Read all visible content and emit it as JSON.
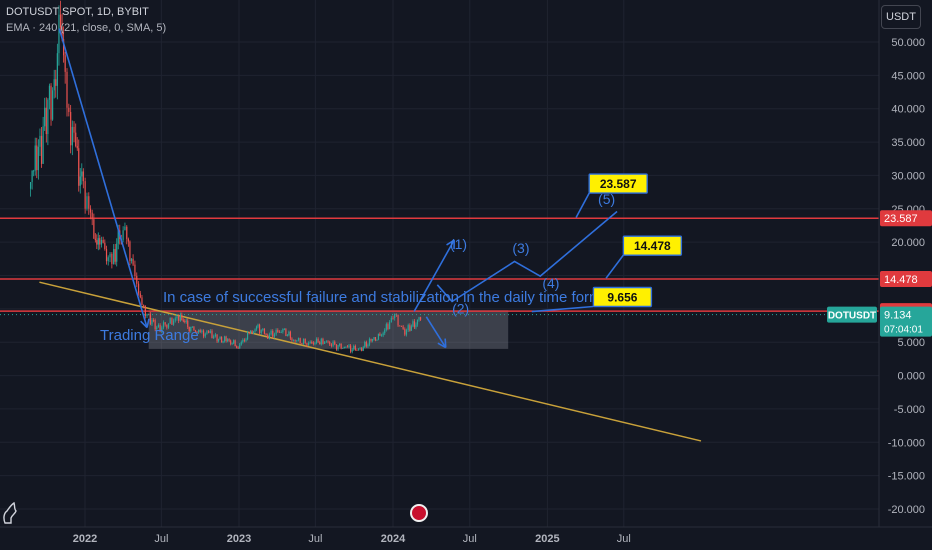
{
  "header": {
    "symbol_line": "DOTUSDT SPOT, 1D, BYBIT",
    "indicator_line": "EMA · 240 (21, close, 0, SMA, 5)"
  },
  "currency_button": "USDT",
  "chart_data": {
    "type": "line",
    "symbol": "DOTUSDT",
    "y_axis": {
      "ticks": [
        "-20.000",
        "-15.000",
        "-10.000",
        "-5.000",
        "0.000",
        "5.000",
        "10.000",
        "15.000",
        "20.000",
        "25.000",
        "30.000",
        "35.000",
        "40.000",
        "45.000",
        "50.000"
      ],
      "range": [
        -22,
        54
      ]
    },
    "x_axis": {
      "ticks": [
        "2022",
        "Jul",
        "2023",
        "Jul",
        "2024",
        "Jul",
        "2025",
        "Jul"
      ]
    },
    "price_series": {
      "name": "",
      "points": [
        [
          "2021-08-25",
          28
        ],
        [
          "2021-09-05",
          33
        ],
        [
          "2021-09-20",
          35
        ],
        [
          "2021-10-05",
          40
        ],
        [
          "2021-10-20",
          44
        ],
        [
          "2021-11-04",
          52
        ],
        [
          "2021-11-15",
          44
        ],
        [
          "2021-11-28",
          38
        ],
        [
          "2021-12-10",
          33
        ],
        [
          "2021-12-28",
          28
        ],
        [
          "2022-01-10",
          26
        ],
        [
          "2022-01-22",
          20
        ],
        [
          "2022-02-05",
          21
        ],
        [
          "2022-02-25",
          17
        ],
        [
          "2022-03-10",
          18
        ],
        [
          "2022-03-28",
          22
        ],
        [
          "2022-04-10",
          20
        ],
        [
          "2022-04-25",
          17
        ],
        [
          "2022-05-08",
          12
        ],
        [
          "2022-05-20",
          10
        ],
        [
          "2022-06-05",
          8.5
        ],
        [
          "2022-06-20",
          7
        ],
        [
          "2022-07-10",
          7.5
        ],
        [
          "2022-07-30",
          8.3
        ],
        [
          "2022-08-15",
          8.8
        ],
        [
          "2022-09-05",
          7.3
        ],
        [
          "2022-10-01",
          6.3
        ],
        [
          "2022-10-25",
          6.4
        ],
        [
          "2022-11-10",
          5.4
        ],
        [
          "2022-12-05",
          5.3
        ],
        [
          "2022-12-30",
          4.4
        ],
        [
          "2023-01-25",
          6.2
        ],
        [
          "2023-02-15",
          7.2
        ],
        [
          "2023-03-10",
          6.0
        ],
        [
          "2023-04-15",
          6.8
        ],
        [
          "2023-05-10",
          5.4
        ],
        [
          "2023-06-15",
          4.8
        ],
        [
          "2023-07-15",
          5.2
        ],
        [
          "2023-08-20",
          4.5
        ],
        [
          "2023-09-15",
          4.1
        ],
        [
          "2023-10-15",
          3.9
        ],
        [
          "2023-11-10",
          5.3
        ],
        [
          "2023-12-01",
          5.8
        ],
        [
          "2023-12-20",
          7.6
        ],
        [
          "2024-01-05",
          9.0
        ],
        [
          "2024-01-25",
          6.6
        ],
        [
          "2024-02-10",
          7.1
        ],
        [
          "2024-02-28",
          8.2
        ],
        [
          "2024-03-10",
          9.134
        ]
      ]
    },
    "horizontal_levels": [
      {
        "value": 23.587,
        "label": "23.587",
        "callout": "23.587"
      },
      {
        "value": 14.478,
        "label": "14.478",
        "callout": "14.478"
      },
      {
        "value": 9.656,
        "label": "9.656",
        "callout": "9.656"
      }
    ],
    "current_price": {
      "value": 9.134,
      "label": "9.134",
      "symbol": "DOTUSDT",
      "countdown": "07:04:01"
    },
    "trend_line": {
      "from": [
        "2021-09-15",
        14
      ],
      "to": [
        "2025-12-31",
        -9.8
      ]
    },
    "trading_range": {
      "from": "2022-06-01",
      "to": "2024-09-30",
      "low": 4.0,
      "high": 9.8
    },
    "wave_labels": [
      "(1)",
      "(2)",
      "(3)",
      "(4)",
      "(5)"
    ],
    "annotations": {
      "trading_range_label": "Trading Range",
      "scenario_text": "In case of successful failure and stabilization in the daily time form"
    }
  }
}
